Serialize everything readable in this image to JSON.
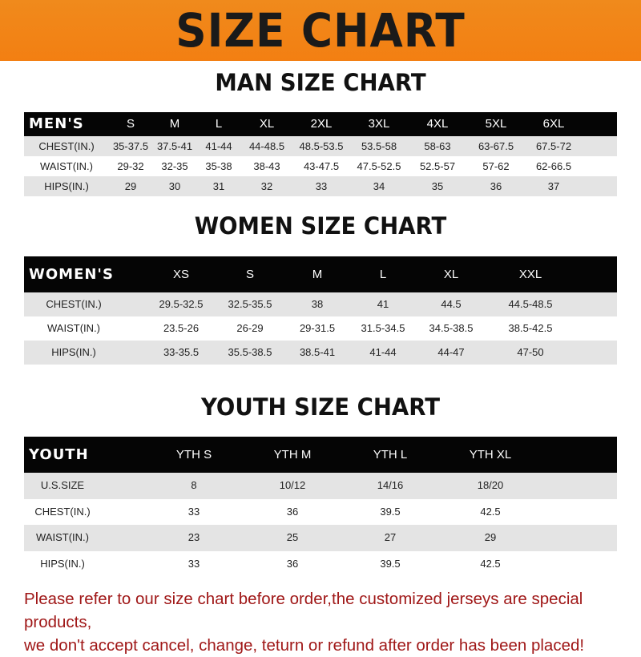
{
  "banner_title": "SIZE CHART",
  "men": {
    "title": "MAN SIZE CHART",
    "header": [
      "MEN'S",
      "S",
      "M",
      "L",
      "XL",
      "2XL",
      "3XL",
      "4XL",
      "5XL",
      "6XL"
    ],
    "rows": [
      [
        "CHEST(IN.)",
        "35-37.5",
        "37.5-41",
        "41-44",
        "44-48.5",
        "48.5-53.5",
        "53.5-58",
        "58-63",
        "63-67.5",
        "67.5-72"
      ],
      [
        "WAIST(IN.)",
        "29-32",
        "32-35",
        "35-38",
        "38-43",
        "43-47.5",
        "47.5-52.5",
        "52.5-57",
        "57-62",
        "62-66.5"
      ],
      [
        "HIPS(IN.)",
        "29",
        "30",
        "31",
        "32",
        "33",
        "34",
        "35",
        "36",
        "37"
      ]
    ]
  },
  "women": {
    "title": "WOMEN SIZE CHART",
    "header": [
      "WOMEN'S",
      "XS",
      "S",
      "M",
      "L",
      "XL",
      "XXL"
    ],
    "rows": [
      [
        "CHEST(IN.)",
        "29.5-32.5",
        "32.5-35.5",
        "38",
        "41",
        "44.5",
        "44.5-48.5"
      ],
      [
        "WAIST(IN.)",
        "23.5-26",
        "26-29",
        "29-31.5",
        "31.5-34.5",
        "34.5-38.5",
        "38.5-42.5"
      ],
      [
        "HIPS(IN.)",
        "33-35.5",
        "35.5-38.5",
        "38.5-41",
        "41-44",
        "44-47",
        "47-50"
      ]
    ]
  },
  "youth": {
    "title": "YOUTH SIZE CHART",
    "header": [
      "YOUTH",
      "YTH S",
      "YTH M",
      "YTH L",
      "YTH XL"
    ],
    "rows": [
      [
        "U.S.SIZE",
        "8",
        "10/12",
        "14/16",
        "18/20"
      ],
      [
        "CHEST(IN.)",
        "33",
        "36",
        "39.5",
        "42.5"
      ],
      [
        "WAIST(IN.)",
        "23",
        "25",
        "27",
        "29"
      ],
      [
        "HIPS(IN.)",
        "33",
        "36",
        "39.5",
        "42.5"
      ]
    ]
  },
  "notice": {
    "line1": "Please refer to our size chart before order,the customized jerseys are special products,",
    "line2": "we don't accept cancel, change, teturn or refund after order has been placed!"
  },
  "colors": {
    "banner": "#f37f12",
    "header_row": "#050505",
    "stripe": "#e4e4e4",
    "notice": "#a01818"
  }
}
